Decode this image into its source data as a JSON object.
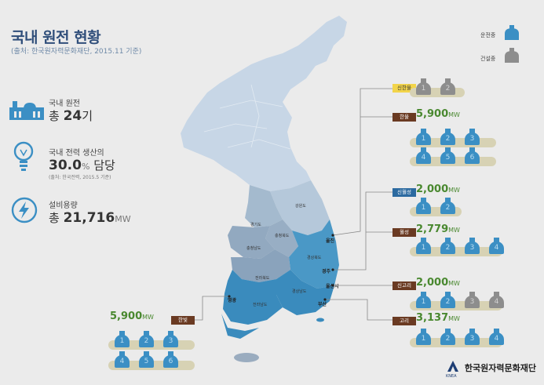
{
  "header": {
    "title": "국내 원전 현황",
    "subtitle": "(출처: 한국원자력문화재단, 2015.11 기준)"
  },
  "legend": {
    "operating": "운전중",
    "construction": "건설중",
    "colors": {
      "operating": "#3b8fc4",
      "construction": "#8d8d8d"
    }
  },
  "stats": {
    "plants": {
      "label": "국내 원전",
      "prefix": "총",
      "value": "24",
      "suffix": "기"
    },
    "share": {
      "label": "국내 전력 생산의",
      "value": "30.0",
      "unit": "%",
      "suffix": "담당",
      "source": "(출처: 한국전력, 2015.5 기준)"
    },
    "capacity": {
      "label": "설비용량",
      "prefix": "총",
      "value": "21,716",
      "unit": "MW"
    }
  },
  "map": {
    "provinces": [
      "강원도",
      "경기도",
      "충청북도",
      "충청남도",
      "경상북도",
      "전라북도",
      "경상남도",
      "전라남도"
    ],
    "cities": [
      "울진",
      "경주",
      "울산시",
      "부산",
      "영광"
    ]
  },
  "plants": [
    {
      "name": "신한울",
      "capacity": "",
      "unit": "",
      "reactors": [
        {
          "n": "1",
          "status": "construction"
        },
        {
          "n": "2",
          "status": "construction"
        }
      ]
    },
    {
      "name": "한울",
      "capacity": "5,900",
      "unit": "MW",
      "reactors": [
        {
          "n": "1",
          "status": "operating"
        },
        {
          "n": "2",
          "status": "operating"
        },
        {
          "n": "3",
          "status": "operating"
        },
        {
          "n": "4",
          "status": "operating"
        },
        {
          "n": "5",
          "status": "operating"
        },
        {
          "n": "6",
          "status": "operating"
        }
      ]
    },
    {
      "name": "신월성",
      "capacity": "2,000",
      "unit": "MW",
      "reactors": [
        {
          "n": "1",
          "status": "operating"
        },
        {
          "n": "2",
          "status": "operating"
        }
      ]
    },
    {
      "name": "월성",
      "capacity": "2,779",
      "unit": "MW",
      "reactors": [
        {
          "n": "1",
          "status": "operating"
        },
        {
          "n": "2",
          "status": "operating"
        },
        {
          "n": "3",
          "status": "operating"
        },
        {
          "n": "4",
          "status": "operating"
        }
      ]
    },
    {
      "name": "신고리",
      "capacity": "2,000",
      "unit": "MW",
      "reactors": [
        {
          "n": "1",
          "status": "operating"
        },
        {
          "n": "2",
          "status": "operating"
        },
        {
          "n": "3",
          "status": "construction"
        },
        {
          "n": "4",
          "status": "construction"
        }
      ]
    },
    {
      "name": "고리",
      "capacity": "3,137",
      "unit": "MW",
      "reactors": [
        {
          "n": "1",
          "status": "operating"
        },
        {
          "n": "2",
          "status": "operating"
        },
        {
          "n": "3",
          "status": "operating"
        },
        {
          "n": "4",
          "status": "operating"
        }
      ]
    },
    {
      "name": "한빛",
      "capacity": "5,900",
      "unit": "MW",
      "reactors": [
        {
          "n": "1",
          "status": "operating"
        },
        {
          "n": "2",
          "status": "operating"
        },
        {
          "n": "3",
          "status": "operating"
        },
        {
          "n": "4",
          "status": "operating"
        },
        {
          "n": "5",
          "status": "operating"
        },
        {
          "n": "6",
          "status": "operating"
        }
      ]
    }
  ],
  "footer": {
    "org": "한국원자력문화재단",
    "org_abbr": "KNEA"
  }
}
